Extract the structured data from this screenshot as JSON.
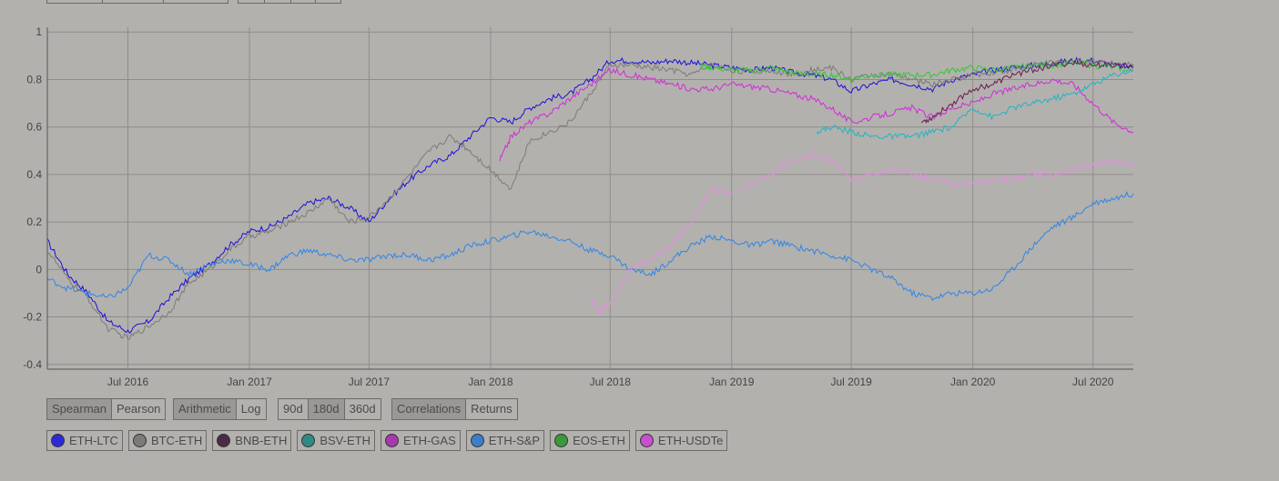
{
  "controls": {
    "method": {
      "options": [
        "Spearman",
        "Pearson"
      ],
      "active": "Spearman"
    },
    "scale": {
      "options": [
        "Arithmetic",
        "Log"
      ],
      "active": "Arithmetic"
    },
    "window": {
      "options": [
        "90d",
        "180d",
        "360d"
      ],
      "active": "180d"
    },
    "view": {
      "options": [
        "Correlations",
        "Returns"
      ],
      "active": "Correlations"
    }
  },
  "legend": [
    {
      "label": "ETH-LTC",
      "color": "#2a2ad6"
    },
    {
      "label": "BTC-ETH",
      "color": "#7d7a77"
    },
    {
      "label": "BNB-ETH",
      "color": "#4a2a45"
    },
    {
      "label": "BSV-ETH",
      "color": "#2f8a86"
    },
    {
      "label": "ETH-GAS",
      "color": "#a638b0"
    },
    {
      "label": "ETH-S&P",
      "color": "#3a7fc6"
    },
    {
      "label": "EOS-ETH",
      "color": "#3a9a3a"
    },
    {
      "label": "ETH-USDTe",
      "color": "#c94fd0"
    }
  ],
  "chart_data": {
    "type": "line",
    "xlabel": "",
    "ylabel": "",
    "x_ticks": [
      "Jul 2016",
      "Jan 2017",
      "Jul 2017",
      "Jan 2018",
      "Jul 2018",
      "Jan 2019",
      "Jul 2019",
      "Jan 2020",
      "Jul 2020"
    ],
    "y_ticks": [
      "1",
      "0.8",
      "0.6",
      "0.4",
      "0.2",
      "0",
      "-0.2",
      "-0.4"
    ],
    "ylim": [
      -0.42,
      1.02
    ],
    "xlim": [
      "2016-03-01",
      "2020-08-31"
    ],
    "grid": true,
    "series": [
      {
        "name": "ETH-LTC",
        "color": "#1c10d8",
        "x": [
          "2016-03-01",
          "2016-04-01",
          "2016-05-01",
          "2016-06-01",
          "2016-07-01",
          "2016-08-01",
          "2016-09-01",
          "2016-10-01",
          "2016-11-01",
          "2016-12-01",
          "2017-01-01",
          "2017-02-01",
          "2017-03-01",
          "2017-04-01",
          "2017-05-01",
          "2017-06-01",
          "2017-07-01",
          "2017-08-01",
          "2017-09-01",
          "2017-10-01",
          "2017-11-01",
          "2017-12-01",
          "2018-01-01",
          "2018-02-01",
          "2018-03-01",
          "2018-04-01",
          "2018-05-01",
          "2018-06-01",
          "2018-07-01",
          "2018-08-01",
          "2018-09-01",
          "2018-10-01",
          "2018-11-01",
          "2018-12-01",
          "2019-01-01",
          "2019-02-01",
          "2019-03-01",
          "2019-04-01",
          "2019-05-01",
          "2019-06-01",
          "2019-07-01",
          "2019-08-01",
          "2019-09-01",
          "2019-10-01",
          "2019-11-01",
          "2019-12-01",
          "2020-01-01",
          "2020-02-01",
          "2020-03-01",
          "2020-04-01",
          "2020-05-01",
          "2020-06-01",
          "2020-07-01",
          "2020-08-01",
          "2020-08-31"
        ],
        "y": [
          0.12,
          -0.02,
          -0.1,
          -0.22,
          -0.26,
          -0.22,
          -0.12,
          -0.04,
          0.02,
          0.1,
          0.16,
          0.18,
          0.22,
          0.28,
          0.3,
          0.26,
          0.2,
          0.3,
          0.38,
          0.44,
          0.48,
          0.56,
          0.64,
          0.62,
          0.68,
          0.72,
          0.74,
          0.8,
          0.88,
          0.88,
          0.87,
          0.88,
          0.87,
          0.86,
          0.85,
          0.84,
          0.85,
          0.83,
          0.82,
          0.8,
          0.75,
          0.78,
          0.8,
          0.78,
          0.76,
          0.8,
          0.82,
          0.84,
          0.85,
          0.86,
          0.87,
          0.88,
          0.88,
          0.86,
          0.85
        ]
      },
      {
        "name": "BTC-ETH",
        "color": "#7d7a77",
        "x": [
          "2016-03-01",
          "2016-04-01",
          "2016-05-01",
          "2016-06-01",
          "2016-07-01",
          "2016-08-01",
          "2016-09-01",
          "2016-10-01",
          "2016-11-01",
          "2016-12-01",
          "2017-01-01",
          "2017-02-01",
          "2017-03-01",
          "2017-04-01",
          "2017-05-01",
          "2017-06-01",
          "2017-07-01",
          "2017-08-01",
          "2017-09-01",
          "2017-10-01",
          "2017-11-01",
          "2017-12-01",
          "2018-01-01",
          "2018-02-01",
          "2018-03-01",
          "2018-04-01",
          "2018-05-01",
          "2018-06-01",
          "2018-07-01",
          "2018-08-01",
          "2018-09-01",
          "2018-10-01",
          "2018-11-01",
          "2018-12-01",
          "2019-01-01",
          "2019-02-01",
          "2019-03-01",
          "2019-04-01",
          "2019-05-01",
          "2019-06-01",
          "2019-07-01",
          "2019-08-01",
          "2019-09-01",
          "2019-10-01",
          "2019-11-01",
          "2019-12-01",
          "2020-01-01",
          "2020-02-01",
          "2020-03-01",
          "2020-04-01",
          "2020-05-01",
          "2020-06-01",
          "2020-07-01",
          "2020-08-01",
          "2020-08-31"
        ],
        "y": [
          0.08,
          -0.04,
          -0.12,
          -0.25,
          -0.29,
          -0.24,
          -0.18,
          -0.06,
          0.0,
          0.08,
          0.14,
          0.16,
          0.2,
          0.24,
          0.3,
          0.2,
          0.22,
          0.3,
          0.4,
          0.5,
          0.56,
          0.5,
          0.42,
          0.34,
          0.54,
          0.58,
          0.62,
          0.74,
          0.86,
          0.86,
          0.85,
          0.84,
          0.82,
          0.86,
          0.84,
          0.83,
          0.84,
          0.82,
          0.84,
          0.85,
          0.8,
          0.82,
          0.82,
          0.8,
          0.78,
          0.8,
          0.82,
          0.83,
          0.84,
          0.86,
          0.87,
          0.88,
          0.88,
          0.87,
          0.86
        ]
      },
      {
        "name": "ETH-USDTe",
        "color": "#d32ad9",
        "x": [
          "2018-01-15",
          "2018-02-01",
          "2018-03-01",
          "2018-04-01",
          "2018-05-01",
          "2018-06-01",
          "2018-07-01",
          "2018-08-01",
          "2018-09-01",
          "2018-10-01",
          "2018-11-01",
          "2018-12-01",
          "2019-01-01",
          "2019-02-01",
          "2019-03-01",
          "2019-04-01",
          "2019-05-01",
          "2019-06-01",
          "2019-07-01",
          "2019-08-01",
          "2019-09-01",
          "2019-10-01",
          "2019-11-01",
          "2019-12-01",
          "2020-01-01",
          "2020-02-01",
          "2020-03-01",
          "2020-04-01",
          "2020-05-01",
          "2020-06-01",
          "2020-07-01",
          "2020-08-01",
          "2020-08-31"
        ],
        "y": [
          0.46,
          0.56,
          0.62,
          0.66,
          0.72,
          0.78,
          0.84,
          0.82,
          0.8,
          0.78,
          0.76,
          0.76,
          0.78,
          0.77,
          0.76,
          0.74,
          0.72,
          0.68,
          0.62,
          0.64,
          0.66,
          0.68,
          0.64,
          0.68,
          0.7,
          0.74,
          0.76,
          0.78,
          0.8,
          0.78,
          0.7,
          0.62,
          0.58
        ]
      },
      {
        "name": "ETH-S&P",
        "color": "#2f86e6",
        "x": [
          "2016-03-01",
          "2016-04-01",
          "2016-05-01",
          "2016-06-01",
          "2016-07-01",
          "2016-08-01",
          "2016-09-01",
          "2016-10-01",
          "2016-11-01",
          "2016-12-01",
          "2017-01-01",
          "2017-02-01",
          "2017-03-01",
          "2017-04-01",
          "2017-05-01",
          "2017-06-01",
          "2017-07-01",
          "2017-08-01",
          "2017-09-01",
          "2017-10-01",
          "2017-11-01",
          "2017-12-01",
          "2018-01-01",
          "2018-02-01",
          "2018-03-01",
          "2018-04-01",
          "2018-05-01",
          "2018-06-01",
          "2018-07-01",
          "2018-08-01",
          "2018-09-01",
          "2018-10-01",
          "2018-11-01",
          "2018-12-01",
          "2019-01-01",
          "2019-02-01",
          "2019-03-01",
          "2019-04-01",
          "2019-05-01",
          "2019-06-01",
          "2019-07-01",
          "2019-08-01",
          "2019-09-01",
          "2019-10-01",
          "2019-11-01",
          "2019-12-01",
          "2020-01-01",
          "2020-02-01",
          "2020-03-01",
          "2020-04-01",
          "2020-05-01",
          "2020-06-01",
          "2020-07-01",
          "2020-08-01",
          "2020-08-31"
        ],
        "y": [
          -0.04,
          -0.08,
          -0.1,
          -0.12,
          -0.08,
          0.06,
          0.04,
          -0.02,
          0.02,
          0.04,
          0.02,
          0.0,
          0.06,
          0.08,
          0.06,
          0.04,
          0.04,
          0.06,
          0.06,
          0.04,
          0.06,
          0.1,
          0.12,
          0.14,
          0.16,
          0.14,
          0.12,
          0.08,
          0.06,
          0.0,
          -0.02,
          0.04,
          0.1,
          0.14,
          0.12,
          0.1,
          0.12,
          0.1,
          0.08,
          0.06,
          0.04,
          0.0,
          -0.04,
          -0.1,
          -0.12,
          -0.1,
          -0.1,
          -0.08,
          0.0,
          0.1,
          0.18,
          0.22,
          0.28,
          0.3,
          0.32
        ]
      },
      {
        "name": "ETH-GAS",
        "color": "#e98ae6",
        "x": [
          "2018-06-01",
          "2018-06-15",
          "2018-07-01",
          "2018-08-01",
          "2018-09-01",
          "2018-10-01",
          "2018-11-01",
          "2018-12-01",
          "2019-01-01",
          "2019-02-01",
          "2019-03-01",
          "2019-04-01",
          "2019-05-01",
          "2019-06-01",
          "2019-07-01",
          "2019-08-01",
          "2019-09-01",
          "2019-10-01",
          "2019-11-01",
          "2019-12-01",
          "2020-01-01",
          "2020-02-01",
          "2020-03-01",
          "2020-04-01",
          "2020-05-01",
          "2020-06-01",
          "2020-07-01",
          "2020-08-01",
          "2020-08-31"
        ],
        "y": [
          -0.12,
          -0.18,
          -0.14,
          0.0,
          0.04,
          0.1,
          0.2,
          0.34,
          0.32,
          0.36,
          0.4,
          0.46,
          0.48,
          0.46,
          0.38,
          0.4,
          0.42,
          0.4,
          0.38,
          0.36,
          0.36,
          0.38,
          0.38,
          0.4,
          0.4,
          0.42,
          0.44,
          0.46,
          0.44
        ]
      },
      {
        "name": "BSV-ETH",
        "color": "#1fb5c0",
        "x": [
          "2019-05-10",
          "2019-06-01",
          "2019-07-01",
          "2019-08-01",
          "2019-09-01",
          "2019-10-01",
          "2019-11-01",
          "2019-12-01",
          "2020-01-01",
          "2020-02-01",
          "2020-03-01",
          "2020-04-01",
          "2020-05-01",
          "2020-06-01",
          "2020-07-01",
          "2020-08-01",
          "2020-08-31"
        ],
        "y": [
          0.58,
          0.6,
          0.58,
          0.56,
          0.56,
          0.56,
          0.58,
          0.6,
          0.68,
          0.64,
          0.68,
          0.7,
          0.72,
          0.74,
          0.78,
          0.82,
          0.84
        ]
      },
      {
        "name": "EOS-ETH",
        "color": "#32c832",
        "x": [
          "2018-11-15",
          "2018-12-01",
          "2019-01-01",
          "2019-02-01",
          "2019-03-01",
          "2019-04-01",
          "2019-05-01",
          "2019-06-01",
          "2019-07-01",
          "2019-08-01",
          "2019-09-01",
          "2019-10-01",
          "2019-11-01",
          "2019-12-01",
          "2020-01-01",
          "2020-02-01",
          "2020-03-01",
          "2020-04-01",
          "2020-05-01",
          "2020-06-01",
          "2020-07-01",
          "2020-08-01",
          "2020-08-31"
        ],
        "y": [
          0.86,
          0.85,
          0.84,
          0.84,
          0.85,
          0.83,
          0.82,
          0.82,
          0.8,
          0.82,
          0.82,
          0.82,
          0.82,
          0.84,
          0.85,
          0.84,
          0.85,
          0.86,
          0.86,
          0.87,
          0.86,
          0.85,
          0.84
        ]
      },
      {
        "name": "BNB-ETH",
        "color": "#6b1a55",
        "x": [
          "2019-10-15",
          "2019-11-01",
          "2019-12-01",
          "2020-01-01",
          "2020-02-01",
          "2020-03-01",
          "2020-04-01",
          "2020-05-01",
          "2020-06-01",
          "2020-07-01",
          "2020-08-01",
          "2020-08-31"
        ],
        "y": [
          0.62,
          0.64,
          0.7,
          0.76,
          0.78,
          0.82,
          0.84,
          0.86,
          0.87,
          0.86,
          0.86,
          0.86
        ]
      }
    ]
  }
}
